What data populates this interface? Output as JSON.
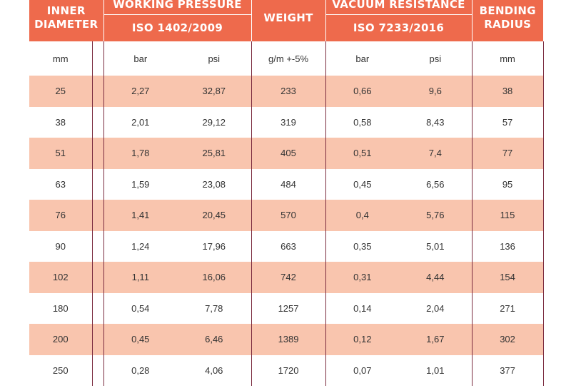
{
  "header": {
    "inner_diameter": "INNER DIAMETER",
    "working_pressure": "WORKING PRESSURE",
    "working_pressure_std": "ISO 1402/2009",
    "weight": "WEIGHT",
    "vacuum_resistance": "VACUUM RESISTANCE",
    "vacuum_resistance_std": "ISO 7233/2016",
    "bending_radius": "BENDING RADIUS"
  },
  "units": [
    "mm",
    "bar",
    "psi",
    "g/m +-5%",
    "bar",
    "psi",
    "mm"
  ],
  "rows": [
    [
      "25",
      "2,27",
      "32,87",
      "233",
      "0,66",
      "9,6",
      "38"
    ],
    [
      "38",
      "2,01",
      "29,12",
      "319",
      "0,58",
      "8,43",
      "57"
    ],
    [
      "51",
      "1,78",
      "25,81",
      "405",
      "0,51",
      "7,4",
      "77"
    ],
    [
      "63",
      "1,59",
      "23,08",
      "484",
      "0,45",
      "6,56",
      "95"
    ],
    [
      "76",
      "1,41",
      "20,45",
      "570",
      "0,4",
      "5,76",
      "115"
    ],
    [
      "90",
      "1,24",
      "17,96",
      "663",
      "0,35",
      "5,01",
      "136"
    ],
    [
      "102",
      "1,11",
      "16,06",
      "742",
      "0,31",
      "4,44",
      "154"
    ],
    [
      "180",
      "0,54",
      "7,78",
      "1257",
      "0,14",
      "2,04",
      "271"
    ],
    [
      "200",
      "0,45",
      "6,46",
      "1389",
      "0,12",
      "1,67",
      "302"
    ],
    [
      "250",
      "0,28",
      "4,06",
      "1720",
      "0,07",
      "1,01",
      "377"
    ]
  ],
  "colors": {
    "header_bg": "#ee6a4c",
    "stripe_bg": "#f9c5ae",
    "divider": "#7a2a3e"
  }
}
